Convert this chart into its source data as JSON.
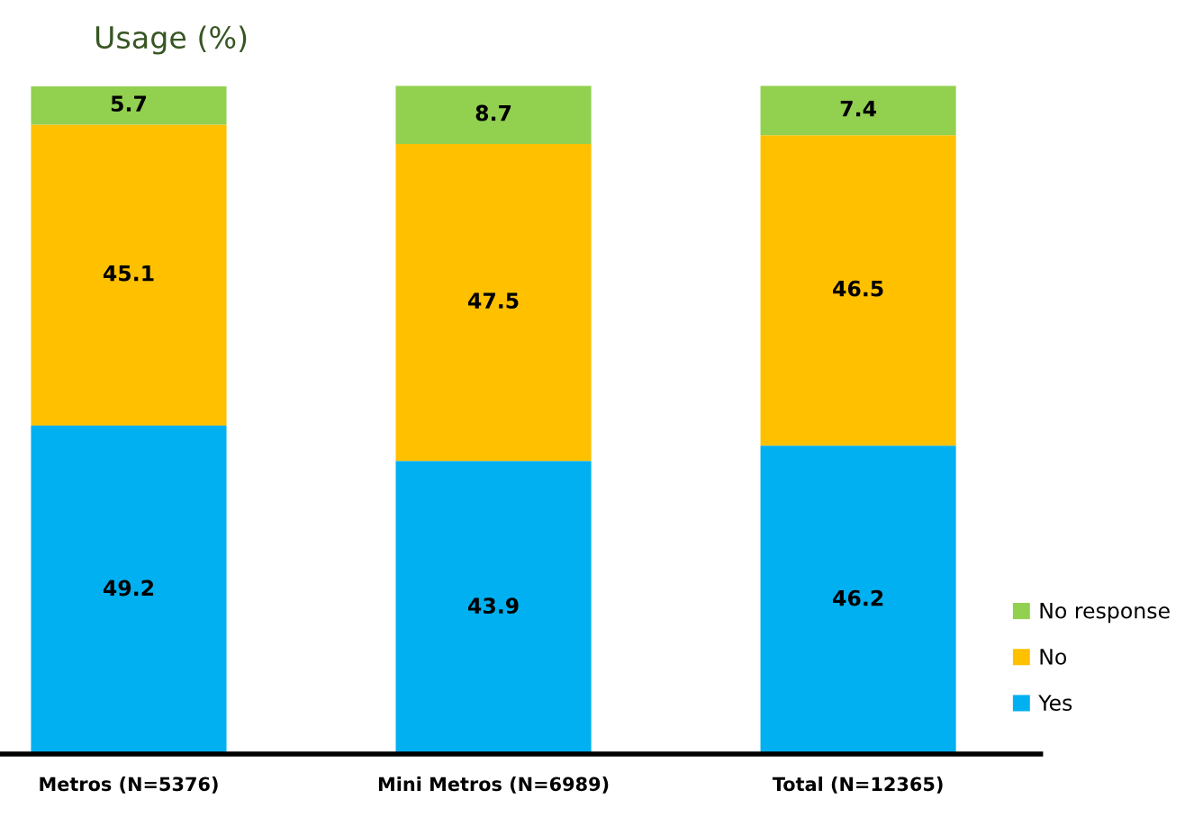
{
  "chart_data": {
    "type": "bar",
    "title": "Usage (%)",
    "stacked": true,
    "data_labels": true,
    "legend": "bottom right",
    "grid": false,
    "categories": [
      "Metros (N=5376)",
      "Mini Metros (N=6989)",
      "Total (N=12365)"
    ],
    "series": [
      {
        "name": "Yes",
        "color": "#00b0f0",
        "values": [
          49.2,
          43.9,
          46.2
        ]
      },
      {
        "name": "No",
        "color": "#ffc000",
        "values": [
          45.1,
          47.5,
          46.5
        ]
      },
      {
        "name": "No response",
        "color": "#92d050",
        "values": [
          5.7,
          8.7,
          7.4
        ]
      }
    ]
  }
}
